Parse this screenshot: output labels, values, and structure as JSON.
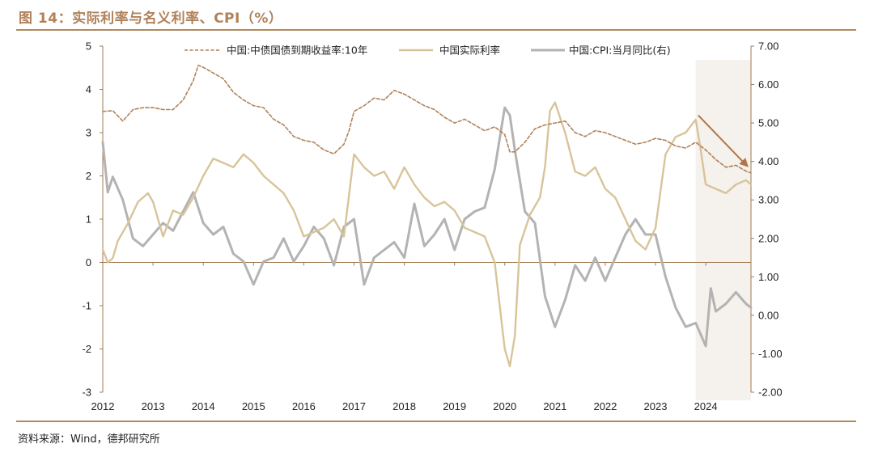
{
  "header": {
    "title": "图 14：实际利率与名义利率、CPI（%）"
  },
  "footer": {
    "source": "资料来源：Wind，德邦研究所"
  },
  "colors": {
    "nominal": "#b0825a",
    "real": "#d8c49a",
    "cpi": "#b3b3b3",
    "arrow": "#b0764a",
    "shade": "#f5f1ec",
    "axis": "#a07a55"
  },
  "chart_data": {
    "type": "line",
    "title": "",
    "legend_position": "top",
    "x_ticks": [
      "2012",
      "2013",
      "2014",
      "2015",
      "2016",
      "2017",
      "2018",
      "2019",
      "2020",
      "2021",
      "2022",
      "2023",
      "2024"
    ],
    "xlim": [
      2012.0,
      2024.9
    ],
    "y_left": {
      "ylim": [
        -3,
        5
      ],
      "ticks": [
        "-3",
        "-2",
        "-1",
        "0",
        "1",
        "2",
        "3",
        "4",
        "5"
      ]
    },
    "y_right": {
      "ylim": [
        -2,
        7
      ],
      "ticks": [
        "-2.00",
        "-1.00",
        "0.00",
        "1.00",
        "2.00",
        "3.00",
        "4.00",
        "5.00",
        "6.00",
        "7.00"
      ]
    },
    "shaded_region": [
      2023.8,
      2024.9
    ],
    "arrow": {
      "from": [
        2023.85,
        5.2
      ],
      "to": [
        2024.85,
        3.85
      ]
    },
    "series": [
      {
        "name": "中国:中债国债到期收益率:10年",
        "axis": "right",
        "style": "dashed",
        "x": [
          2012.0,
          2012.2,
          2012.4,
          2012.6,
          2012.8,
          2013.0,
          2013.2,
          2013.4,
          2013.6,
          2013.8,
          2013.9,
          2014.0,
          2014.2,
          2014.4,
          2014.6,
          2014.8,
          2015.0,
          2015.2,
          2015.4,
          2015.6,
          2015.8,
          2016.0,
          2016.2,
          2016.4,
          2016.6,
          2016.8,
          2016.9,
          2017.0,
          2017.2,
          2017.4,
          2017.6,
          2017.8,
          2017.9,
          2018.0,
          2018.2,
          2018.4,
          2018.6,
          2018.8,
          2019.0,
          2019.2,
          2019.4,
          2019.6,
          2019.8,
          2020.0,
          2020.1,
          2020.2,
          2020.4,
          2020.6,
          2020.8,
          2021.0,
          2021.2,
          2021.4,
          2021.6,
          2021.8,
          2022.0,
          2022.2,
          2022.4,
          2022.6,
          2022.8,
          2023.0,
          2023.2,
          2023.4,
          2023.6,
          2023.8,
          2024.0,
          2024.2,
          2024.4,
          2024.6,
          2024.8,
          2024.9
        ],
        "values": [
          5.3,
          5.32,
          5.05,
          5.35,
          5.4,
          5.4,
          5.35,
          5.35,
          5.6,
          6.1,
          6.5,
          6.45,
          6.3,
          6.15,
          5.8,
          5.6,
          5.45,
          5.4,
          5.1,
          4.95,
          4.65,
          4.55,
          4.5,
          4.3,
          4.2,
          4.45,
          4.8,
          5.3,
          5.45,
          5.65,
          5.6,
          5.85,
          5.8,
          5.75,
          5.6,
          5.45,
          5.35,
          5.15,
          5.0,
          5.1,
          4.95,
          4.8,
          4.9,
          4.7,
          4.25,
          4.25,
          4.5,
          4.85,
          4.95,
          5.0,
          5.05,
          4.75,
          4.65,
          4.8,
          4.75,
          4.65,
          4.55,
          4.45,
          4.5,
          4.6,
          4.55,
          4.4,
          4.35,
          4.5,
          4.3,
          4.05,
          3.85,
          3.9,
          3.75,
          3.7
        ]
      },
      {
        "name": "中国实际利率",
        "axis": "left",
        "style": "solid",
        "x": [
          2012.0,
          2012.1,
          2012.2,
          2012.3,
          2012.5,
          2012.7,
          2012.9,
          2013.0,
          2013.2,
          2013.4,
          2013.6,
          2013.8,
          2014.0,
          2014.2,
          2014.4,
          2014.6,
          2014.8,
          2015.0,
          2015.2,
          2015.4,
          2015.6,
          2015.8,
          2016.0,
          2016.2,
          2016.4,
          2016.6,
          2016.8,
          2017.0,
          2017.2,
          2017.4,
          2017.6,
          2017.8,
          2018.0,
          2018.2,
          2018.4,
          2018.6,
          2018.8,
          2019.0,
          2019.2,
          2019.4,
          2019.6,
          2019.8,
          2019.9,
          2020.0,
          2020.1,
          2020.2,
          2020.3,
          2020.5,
          2020.7,
          2020.8,
          2020.9,
          2021.0,
          2021.2,
          2021.4,
          2021.6,
          2021.8,
          2022.0,
          2022.2,
          2022.4,
          2022.6,
          2022.8,
          2023.0,
          2023.2,
          2023.4,
          2023.6,
          2023.8,
          2023.9,
          2024.0,
          2024.2,
          2024.4,
          2024.6,
          2024.8,
          2024.9
        ],
        "values": [
          0.3,
          0.0,
          0.1,
          0.5,
          0.9,
          1.4,
          1.6,
          1.4,
          0.6,
          1.2,
          1.1,
          1.5,
          2.0,
          2.4,
          2.3,
          2.2,
          2.5,
          2.3,
          2.0,
          1.8,
          1.6,
          1.2,
          0.6,
          0.7,
          0.8,
          1.0,
          0.6,
          2.5,
          2.2,
          2.0,
          2.1,
          1.7,
          2.2,
          1.8,
          1.5,
          1.3,
          1.4,
          1.2,
          0.8,
          0.7,
          0.6,
          0.0,
          -1.0,
          -2.0,
          -2.4,
          -1.7,
          0.4,
          1.1,
          1.5,
          2.2,
          3.5,
          3.7,
          3.0,
          2.1,
          2.0,
          2.2,
          1.7,
          1.5,
          1.0,
          0.5,
          0.3,
          0.8,
          2.5,
          2.9,
          3.0,
          3.3,
          2.6,
          1.8,
          1.7,
          1.6,
          1.8,
          1.9,
          1.8
        ]
      },
      {
        "name": "中国:CPI:当月同比(右)",
        "axis": "right",
        "style": "solid",
        "x": [
          2012.0,
          2012.1,
          2012.2,
          2012.4,
          2012.6,
          2012.8,
          2013.0,
          2013.2,
          2013.4,
          2013.6,
          2013.8,
          2014.0,
          2014.2,
          2014.4,
          2014.6,
          2014.8,
          2015.0,
          2015.2,
          2015.4,
          2015.6,
          2015.8,
          2016.0,
          2016.2,
          2016.4,
          2016.6,
          2016.8,
          2017.0,
          2017.2,
          2017.4,
          2017.6,
          2017.8,
          2018.0,
          2018.2,
          2018.4,
          2018.6,
          2018.8,
          2019.0,
          2019.2,
          2019.4,
          2019.6,
          2019.8,
          2020.0,
          2020.1,
          2020.2,
          2020.4,
          2020.6,
          2020.8,
          2021.0,
          2021.2,
          2021.4,
          2021.6,
          2021.8,
          2022.0,
          2022.2,
          2022.4,
          2022.6,
          2022.8,
          2023.0,
          2023.2,
          2023.4,
          2023.6,
          2023.8,
          2024.0,
          2024.1,
          2024.2,
          2024.4,
          2024.6,
          2024.8,
          2024.9
        ],
        "values": [
          4.5,
          3.2,
          3.6,
          3.0,
          2.0,
          1.8,
          2.1,
          2.4,
          2.2,
          2.7,
          3.2,
          2.4,
          2.1,
          2.3,
          1.6,
          1.4,
          0.8,
          1.4,
          1.5,
          2.0,
          1.4,
          1.8,
          2.3,
          2.0,
          1.3,
          2.3,
          2.5,
          0.8,
          1.5,
          1.7,
          1.9,
          1.5,
          2.9,
          1.8,
          2.1,
          2.5,
          1.7,
          2.5,
          2.7,
          2.8,
          3.8,
          5.4,
          5.2,
          4.3,
          2.7,
          2.4,
          0.5,
          -0.3,
          0.4,
          1.3,
          0.9,
          1.5,
          0.9,
          1.5,
          2.1,
          2.5,
          2.1,
          2.1,
          1.0,
          0.2,
          -0.3,
          -0.2,
          -0.8,
          0.7,
          0.1,
          0.3,
          0.6,
          0.3,
          0.2
        ]
      }
    ]
  }
}
